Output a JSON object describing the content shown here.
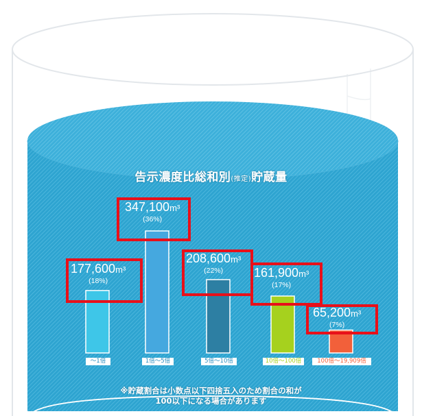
{
  "chart_data": {
    "type": "bar",
    "title": "告示濃度比総和別",
    "title_suffix": "(推定)",
    "title_tail": "貯蔵量",
    "unit": "m³",
    "categories": [
      "〜1倍",
      "1倍〜5倍",
      "5倍〜10倍",
      "10倍〜100倍",
      "100倍〜19,909倍"
    ],
    "values": [
      177600,
      347100,
      208600,
      161900,
      65200
    ],
    "value_labels": [
      "177,600",
      "347,100",
      "208,600",
      "161,900",
      "65,200"
    ],
    "percent_labels": [
      "(18%)",
      "(36%)",
      "(22%)",
      "(17%)",
      "(7%)"
    ],
    "colors": [
      "#3ec6e8",
      "#45a8df",
      "#2d7fa3",
      "#a6d11e",
      "#f2603a"
    ],
    "note_lines": [
      "※貯蔵割合は小数点以下四捨五入のため割合の和が",
      "100以下になる場合があります"
    ]
  }
}
